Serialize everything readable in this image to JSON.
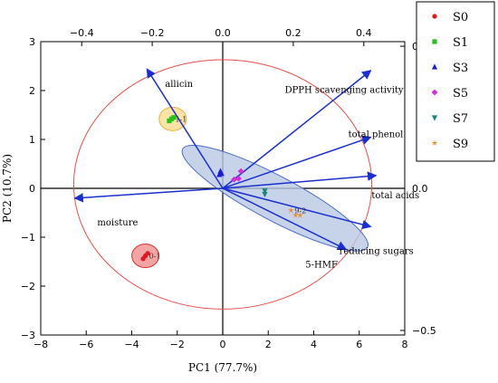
{
  "chart_data": {
    "type": "scatter",
    "xlabel": "PC1 (77.7%)",
    "ylabel": "PC2 (10.7%)",
    "xlim": [
      -8,
      8
    ],
    "ylim": [
      -3,
      3
    ],
    "x_ticks": [
      -8,
      -6,
      -4,
      -2,
      0,
      2,
      4,
      6,
      8
    ],
    "y_ticks": [
      -3,
      -2,
      -1,
      0,
      1,
      2,
      3
    ],
    "top_ticks": [
      -0.4,
      -0.2,
      0.0,
      0.2,
      0.4
    ],
    "top_tick_labels": [
      "−0.4",
      "−0.2",
      "0.0",
      "0.2",
      "0.4"
    ],
    "right_ticks": [
      0.5,
      0.0,
      -0.5
    ],
    "right_tick_labels": [
      "0.5",
      "0.0",
      "−0.5"
    ],
    "loadings_scale": 15.5,
    "confidence_ellipse": {
      "color": "#e8504a"
    },
    "series": [
      {
        "name": "S0",
        "color": "#e0181f",
        "marker": "circle",
        "points": [
          [
            -3.4,
            -1.38
          ],
          [
            -3.3,
            -1.33
          ],
          [
            -3.5,
            -1.44
          ]
        ],
        "group_ellipse": {
          "cx": -3.4,
          "cy": -1.38,
          "rx": 0.65,
          "ry": 0.25,
          "fill": "#f2a5a3",
          "stroke": "#d4302c"
        },
        "point_label": "0-1"
      },
      {
        "name": "S1",
        "color": "#22c417",
        "marker": "square",
        "points": [
          [
            -2.25,
            1.42
          ],
          [
            -2.15,
            1.45
          ],
          [
            -2.35,
            1.38
          ]
        ],
        "group_ellipse": {
          "cx": -2.2,
          "cy": 1.42,
          "rx": 0.65,
          "ry": 0.25,
          "fill": "#fbe3a6",
          "stroke": "#e7b23a"
        },
        "point_label": "1-1"
      },
      {
        "name": "S3",
        "color": "#1c1cd6",
        "marker": "triangle-up",
        "points": [
          [
            -0.1,
            0.35
          ],
          [
            -0.05,
            0.3
          ],
          [
            -0.15,
            0.28
          ]
        ]
      },
      {
        "name": "S5",
        "color": "#d92bd6",
        "marker": "diamond",
        "points": [
          [
            0.8,
            0.35
          ],
          [
            0.7,
            0.2
          ],
          [
            0.5,
            0.18
          ]
        ]
      },
      {
        "name": "S7",
        "color": "#128a7a",
        "marker": "triangle-down",
        "points": [
          [
            1.85,
            -0.05
          ],
          [
            1.85,
            -0.12
          ]
        ]
      },
      {
        "name": "S9",
        "color": "#f08a26",
        "marker": "star",
        "points": [
          [
            3.0,
            -0.45
          ],
          [
            3.2,
            -0.55
          ],
          [
            3.4,
            -0.55
          ]
        ],
        "point_label": "9-2"
      }
    ],
    "group_ellipse_center": {
      "cx": 2.3,
      "cy": -0.2,
      "rx": 4.6,
      "ry": 0.45,
      "angle_deg": -28,
      "fill": "#b9c8e4",
      "stroke": "#4a6dc2"
    },
    "loadings": [
      {
        "name": "allicin",
        "x": -0.215,
        "y": 0.42
      },
      {
        "name": "DPPH scavenging activity",
        "x": 0.42,
        "y": 0.415
      },
      {
        "name": "total phenol",
        "x": 0.42,
        "y": 0.18
      },
      {
        "name": "total acids",
        "x": 0.435,
        "y": 0.045
      },
      {
        "name": "reducing sugars",
        "x": 0.42,
        "y": -0.135
      },
      {
        "name": "5-HMF",
        "x": 0.35,
        "y": -0.215
      },
      {
        "name": "moisture",
        "x": -0.42,
        "y": -0.035
      }
    ]
  }
}
